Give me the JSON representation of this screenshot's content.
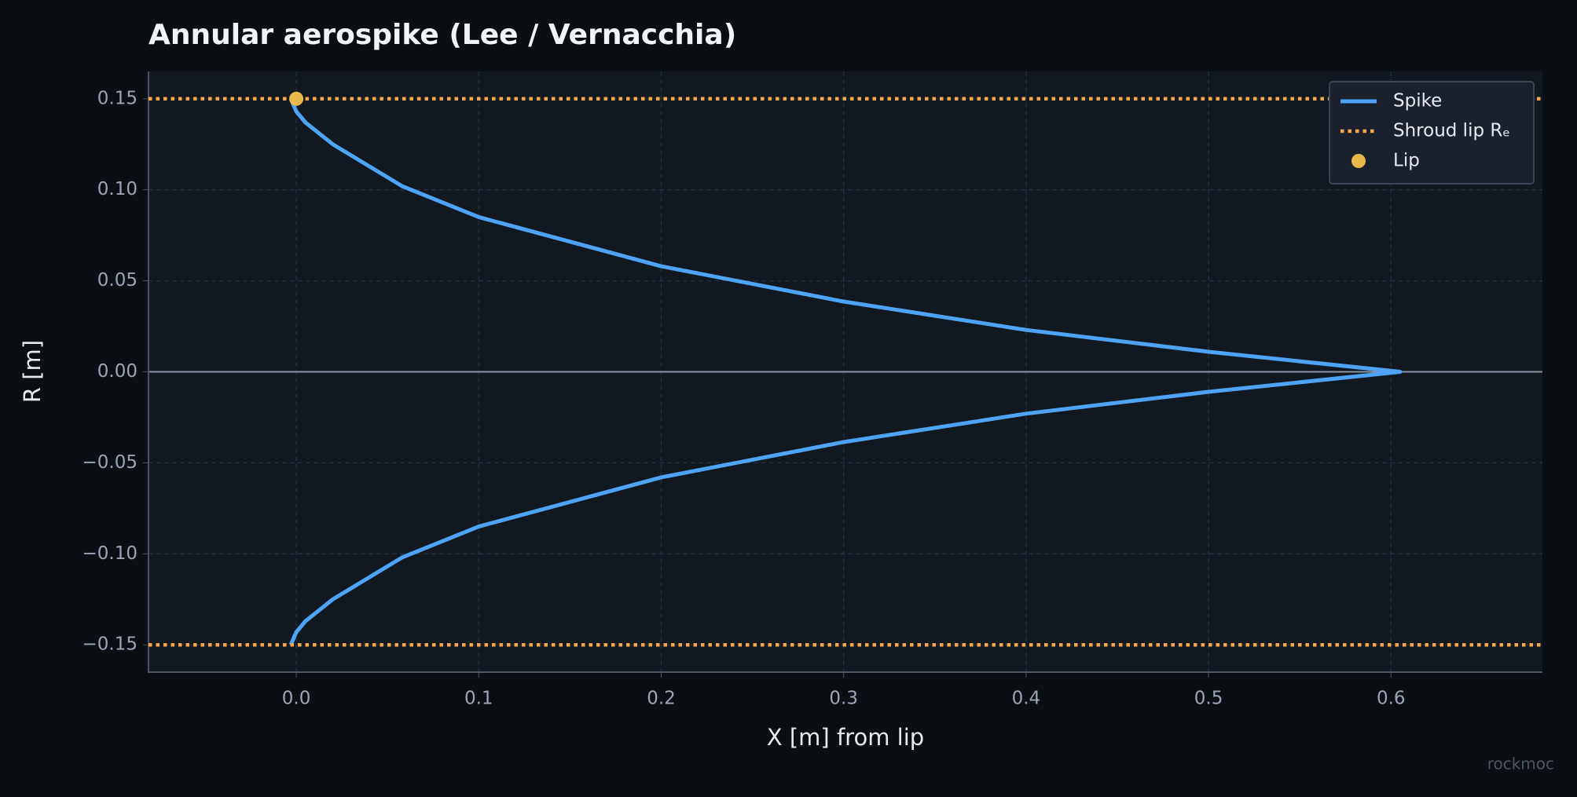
{
  "chart_data": {
    "type": "line",
    "title": "Annular aerospike (Lee / Vernacchia)",
    "xlabel": "X [m] from lip",
    "ylabel": "R [m]",
    "watermark": "rockmoc",
    "xlim": [
      -0.081,
      0.683
    ],
    "ylim": [
      -0.165,
      0.165
    ],
    "xticks": [
      {
        "value": 0,
        "label": "0.0"
      },
      0.1,
      0.2,
      0.3,
      0.4,
      0.5,
      0.6
    ],
    "yticks": [
      {
        "value": -0.15,
        "label": "−0.15"
      },
      {
        "value": -0.1,
        "label": "−0.10"
      },
      {
        "value": -0.05,
        "label": "−0.05"
      },
      {
        "value": 0,
        "label": "0.00"
      },
      {
        "value": 0.05,
        "label": "0.05"
      },
      {
        "value": 0.1,
        "label": "0.10"
      },
      {
        "value": 0.15,
        "label": "0.15"
      }
    ],
    "grid": true,
    "legend": "upper right",
    "series": [
      {
        "name": "Spike",
        "color": "#4da3f5",
        "kind": "line",
        "x": [
          -0.003,
          0.0,
          0.005,
          0.02,
          0.058,
          0.1,
          0.2,
          0.3,
          0.4,
          0.5,
          0.605,
          0.5,
          0.4,
          0.3,
          0.2,
          0.1,
          0.058,
          0.02,
          0.005,
          0.0,
          -0.003
        ],
        "values": [
          0.15,
          0.143,
          0.137,
          0.125,
          0.102,
          0.085,
          0.058,
          0.0386,
          0.023,
          0.011,
          0,
          -0.011,
          -0.023,
          -0.0386,
          -0.058,
          -0.085,
          -0.102,
          -0.125,
          -0.137,
          -0.143,
          -0.15
        ]
      },
      {
        "name": "Shroud lip Rₑ",
        "color": "#f5a54a",
        "kind": "hline",
        "values": [
          0.15,
          -0.15
        ]
      },
      {
        "name": "Lip",
        "color": "#e8b84a",
        "kind": "scatter",
        "x": [
          0
        ],
        "values": [
          0.15
        ]
      }
    ]
  }
}
